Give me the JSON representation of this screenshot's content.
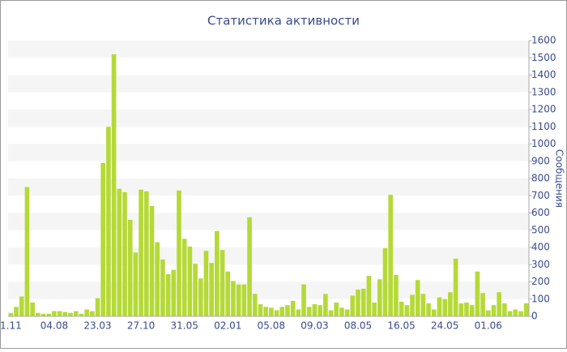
{
  "chart_data": {
    "type": "bar",
    "title": "Статистика активности",
    "y_label": "Сообщения",
    "categories": [
      "1.11",
      null,
      null,
      null,
      null,
      null,
      null,
      null,
      "04.08",
      null,
      null,
      null,
      null,
      null,
      null,
      null,
      "23.03",
      null,
      null,
      null,
      null,
      null,
      null,
      null,
      "27.10",
      null,
      null,
      null,
      null,
      null,
      null,
      null,
      "31.05",
      null,
      null,
      null,
      null,
      null,
      null,
      null,
      "02.01",
      null,
      null,
      null,
      null,
      null,
      null,
      null,
      "05.08",
      null,
      null,
      null,
      null,
      null,
      null,
      null,
      "09.03",
      null,
      null,
      null,
      null,
      null,
      null,
      null,
      "08.05",
      null,
      null,
      null,
      null,
      null,
      null,
      null,
      "16.05",
      null,
      null,
      null,
      null,
      null,
      null,
      null,
      "24.05",
      null,
      null,
      null,
      null,
      null,
      null,
      null,
      "01.06",
      null,
      null,
      null,
      null,
      null,
      null,
      null
    ],
    "values": [
      20,
      55,
      115,
      750,
      80,
      20,
      15,
      15,
      30,
      30,
      25,
      20,
      30,
      15,
      40,
      30,
      105,
      890,
      1100,
      1520,
      740,
      720,
      560,
      370,
      735,
      725,
      640,
      430,
      330,
      245,
      270,
      730,
      450,
      405,
      305,
      220,
      380,
      310,
      495,
      385,
      260,
      205,
      185,
      185,
      575,
      130,
      70,
      55,
      50,
      35,
      55,
      65,
      90,
      40,
      185,
      55,
      70,
      65,
      130,
      35,
      80,
      50,
      40,
      120,
      155,
      160,
      235,
      80,
      215,
      395,
      705,
      240,
      85,
      65,
      125,
      210,
      130,
      75,
      40,
      110,
      100,
      140,
      335,
      75,
      80,
      65,
      260,
      135,
      35,
      65,
      140,
      75,
      30,
      40,
      30,
      75
    ],
    "color": "#b5d936",
    "ylim": [
      0,
      1600
    ],
    "yticks": [
      0,
      100,
      200,
      300,
      400,
      500,
      600,
      700,
      800,
      900,
      1000,
      1100,
      1200,
      1300,
      1400,
      1500,
      1600
    ],
    "grid": "bands",
    "y_axis_side": "right"
  }
}
